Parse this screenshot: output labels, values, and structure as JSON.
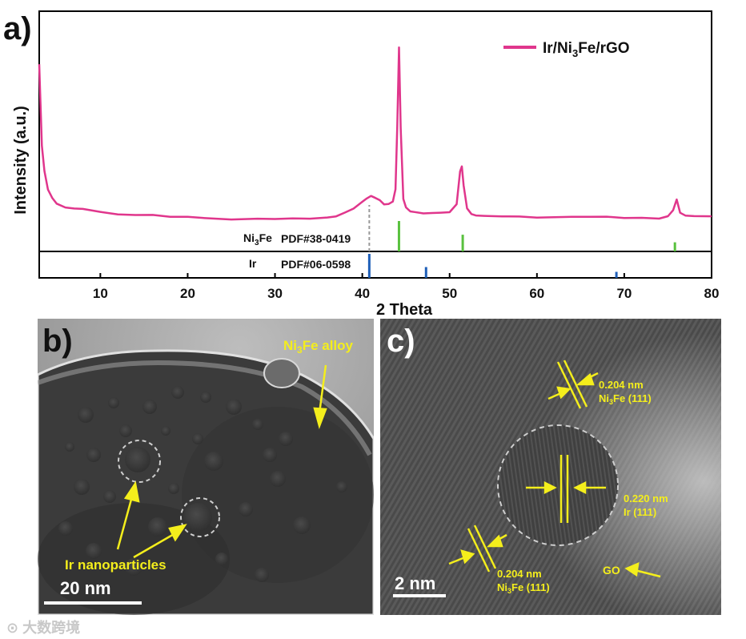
{
  "panel_a": {
    "label": "a)",
    "chart_data": {
      "type": "line",
      "xlabel": "2 Theta",
      "ylabel": "Intensity (a.u.)",
      "xlim": [
        3,
        80
      ],
      "x_ticks": [
        10,
        20,
        30,
        40,
        50,
        60,
        70,
        80
      ],
      "legend": "Ir/Ni3Fe/rGO",
      "legend_position": "top-right",
      "series": [
        {
          "name": "Ir/Ni3Fe/rGO",
          "color": "#e0368c",
          "x": [
            3,
            3.3,
            3.6,
            4,
            4.5,
            5,
            6,
            7,
            8,
            10,
            12,
            14,
            16,
            18,
            20,
            22,
            25,
            28,
            30,
            32,
            34,
            36,
            37,
            38,
            39,
            40,
            40.5,
            41,
            41.5,
            42,
            42.5,
            43,
            43.5,
            43.8,
            44,
            44.2,
            44.4,
            44.7,
            45,
            45.5,
            46,
            47,
            48,
            49,
            50,
            50.8,
            51.2,
            51.4,
            51.6,
            52,
            52.5,
            53,
            54,
            56,
            58,
            60,
            62,
            64,
            66,
            68,
            70,
            72,
            74,
            75,
            75.6,
            76,
            76.4,
            77,
            78,
            79,
            80
          ],
          "y": [
            90,
            45,
            30,
            20,
            15,
            12,
            10,
            9,
            8,
            6.5,
            5.5,
            5,
            4.5,
            4.2,
            4,
            3.8,
            3.5,
            3.5,
            3.5,
            3.6,
            3.8,
            4.3,
            5,
            6,
            8,
            12,
            14,
            15,
            14,
            13,
            12,
            12,
            13,
            20,
            55,
            100,
            55,
            15,
            9,
            7,
            6.5,
            6,
            5.8,
            5.8,
            6.5,
            12,
            30,
            33,
            22,
            9,
            6,
            5,
            4.5,
            4,
            3.8,
            3.6,
            3.5,
            3.5,
            3.5,
            3.5,
            3.6,
            3.7,
            3.9,
            4.5,
            8,
            14,
            7,
            4.2,
            4,
            3.9,
            3.9
          ]
        }
      ],
      "reference_patterns": [
        {
          "name": "Ni3Fe",
          "card": "PDF#38-0419",
          "color": "#59c13e",
          "peaks": [
            44.2,
            51.5,
            75.8
          ],
          "heights": [
            1.0,
            0.55,
            0.3
          ]
        },
        {
          "name": "Ir",
          "card": "PDF#06-0598",
          "color": "#1f5fb8",
          "peaks": [
            40.8,
            47.3,
            69.1
          ],
          "heights": [
            1.0,
            0.45,
            0.25
          ]
        }
      ],
      "dashed_marker_x": 40.8
    }
  },
  "panel_b": {
    "label": "b)",
    "annotation_alloy": "Ni3Fe alloy",
    "annotation_ir": "Ir nanoparticles",
    "scale_bar": "20 nm"
  },
  "panel_c": {
    "label": "c)",
    "fringes": [
      {
        "value": "0.204 nm",
        "phase": "Ni3Fe (111)"
      },
      {
        "value": "0.220 nm",
        "phase": "Ir (111)"
      },
      {
        "value": "0.204 nm",
        "phase": "Ni3Fe (111)"
      }
    ],
    "go_label": "GO",
    "scale_bar": "2 nm"
  },
  "watermark": "大数跨境"
}
